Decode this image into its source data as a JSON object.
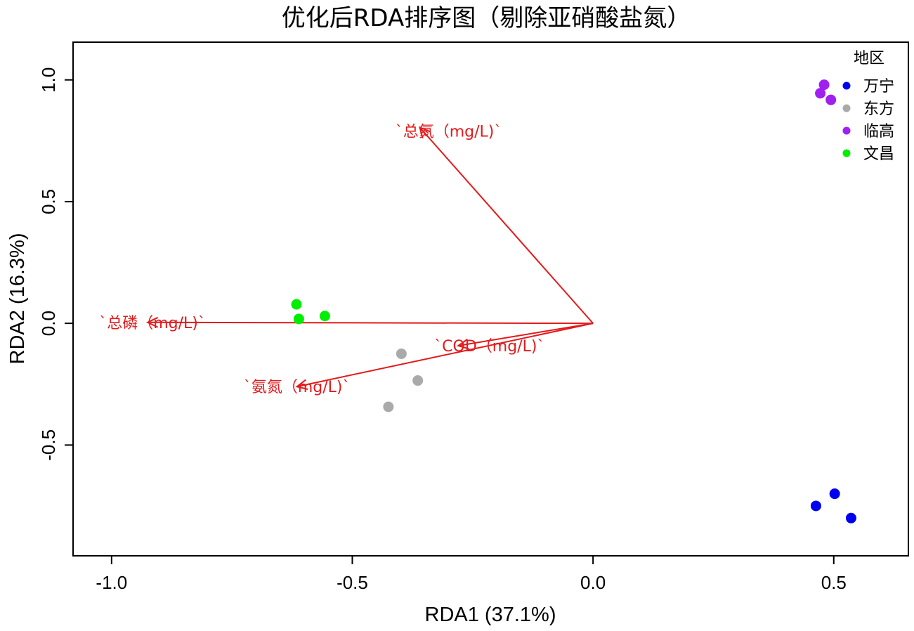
{
  "chart_data": {
    "type": "scatter",
    "title": "优化后RDA排序图（剔除亚硝酸盐氮）",
    "xlabel": "RDA1 (37.1%)",
    "ylabel": "RDA2 (16.3%)",
    "xlim": [
      -1.08,
      0.655
    ],
    "ylim": [
      -0.955,
      1.155
    ],
    "xticks": [
      -1.0,
      -0.5,
      0.0,
      0.5
    ],
    "xtick_labels": [
      "-1.0",
      "-0.5",
      "0.0",
      "0.5"
    ],
    "yticks": [
      -0.5,
      0.0,
      0.5,
      1.0
    ],
    "ytick_labels": [
      "-0.5",
      "0.0",
      "0.5",
      "1.0"
    ],
    "grid": false,
    "legend": {
      "title": "地区",
      "placement": "top-right",
      "entries": [
        "万宁",
        "东方",
        "临高",
        "文昌"
      ]
    },
    "series": [
      {
        "name": "万宁",
        "color": "#0000ee",
        "points": [
          [
            0.502,
            -0.7
          ],
          [
            0.463,
            -0.75
          ],
          [
            0.536,
            -0.8
          ]
        ]
      },
      {
        "name": "东方",
        "color": "#aaaaaa",
        "points": [
          [
            -0.398,
            -0.125
          ],
          [
            -0.364,
            -0.235
          ],
          [
            -0.425,
            -0.343
          ]
        ]
      },
      {
        "name": "临高",
        "color": "#a020f0",
        "points": [
          [
            0.48,
            0.98
          ],
          [
            0.472,
            0.945
          ],
          [
            0.494,
            0.918
          ]
        ]
      },
      {
        "name": "文昌",
        "color": "#00ee00",
        "points": [
          [
            -0.616,
            0.078
          ],
          [
            -0.611,
            0.018
          ],
          [
            -0.557,
            0.03
          ]
        ]
      }
    ],
    "arrows": {
      "color": "#e41a1c",
      "origin": [
        0,
        0
      ],
      "items": [
        {
          "label": "`总氮（mg/L)`",
          "end": [
            -0.36,
            0.805
          ],
          "label_pos": [
            -0.3,
            0.79
          ]
        },
        {
          "label": "`总磷（mg/L)`",
          "end": [
            -0.925,
            0.004
          ],
          "label_pos": [
            -0.915,
            0.004
          ]
        },
        {
          "label": "`COD（mg/L)`",
          "end": [
            -0.28,
            -0.092
          ],
          "label_pos": [
            -0.215,
            -0.092
          ]
        },
        {
          "label": "`氨氮（mg/L)`",
          "end": [
            -0.615,
            -0.26
          ],
          "label_pos": [
            -0.615,
            -0.26
          ]
        }
      ]
    }
  }
}
